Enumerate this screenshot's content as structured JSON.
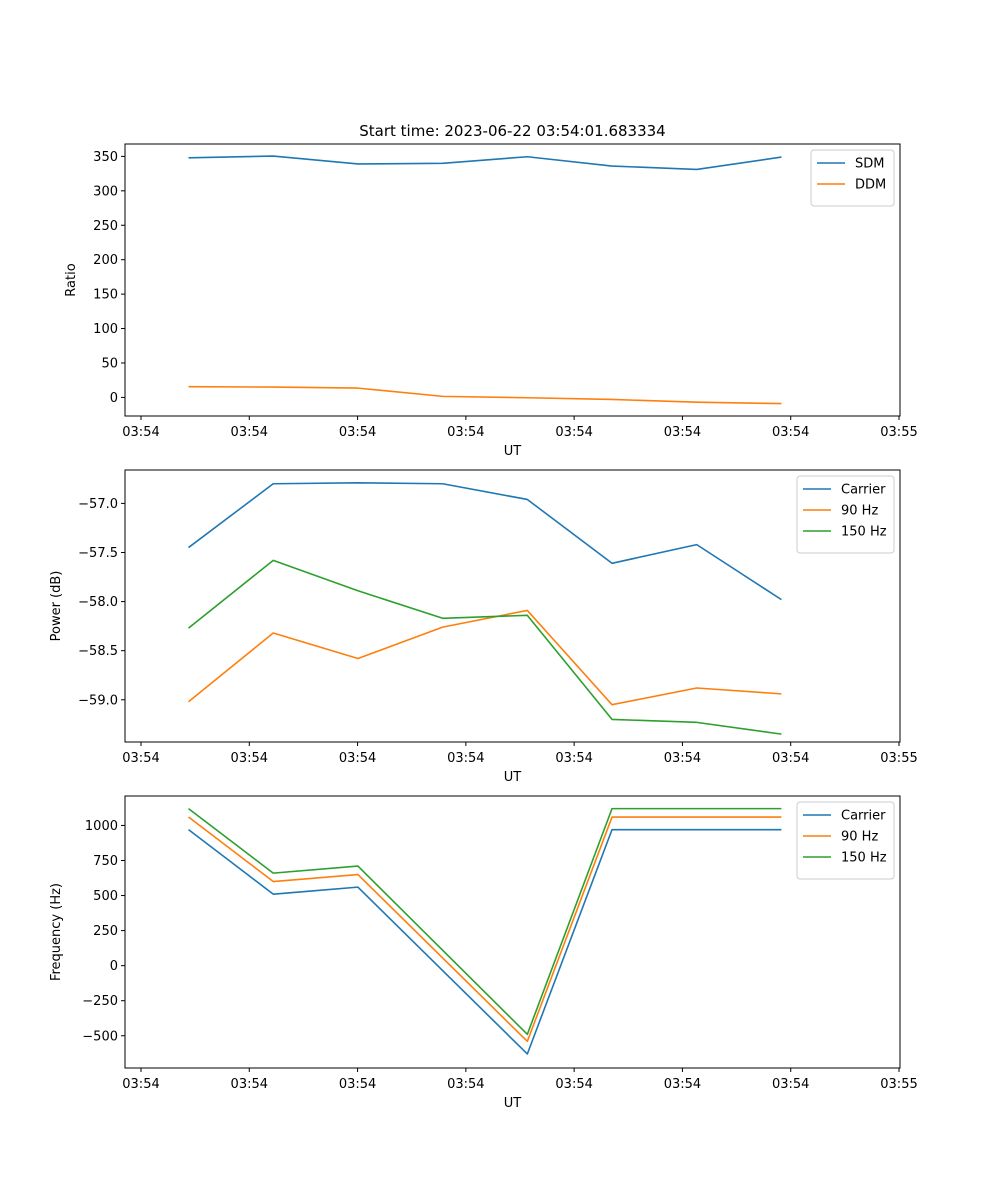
{
  "figure": {
    "title": "Start time: 2023-06-22 03:54:01.683334"
  },
  "chart_data": [
    {
      "type": "line",
      "title": "Start time: 2023-06-22 03:54:01.683334",
      "xlabel": "UT",
      "ylabel": "Ratio",
      "x_tick_labels": [
        "03:54",
        "03:54",
        "03:54",
        "03:54",
        "03:54",
        "03:54",
        "03:54",
        "03:55"
      ],
      "y_ticks": [
        0,
        50,
        100,
        150,
        200,
        250,
        300,
        350
      ],
      "y_tick_labels": [
        "0",
        "50",
        "100",
        "150",
        "200",
        "250",
        "300",
        "350"
      ],
      "xlim": [
        -0.75,
        8.4
      ],
      "ylim": [
        -27,
        368
      ],
      "x": [
        0,
        1,
        2,
        3,
        4,
        5,
        6,
        7
      ],
      "series": [
        {
          "name": "SDM",
          "color": "#1f77b4",
          "values": [
            348,
            350.5,
            339,
            340,
            349.5,
            336,
            331,
            349
          ]
        },
        {
          "name": "DDM",
          "color": "#ff7f0e",
          "values": [
            15.5,
            15,
            13.5,
            1.5,
            -0.5,
            -3,
            -7,
            -9
          ]
        }
      ],
      "legend": "top-right",
      "grid": false
    },
    {
      "type": "line",
      "xlabel": "UT",
      "ylabel": "Power (dB)",
      "x_tick_labels": [
        "03:54",
        "03:54",
        "03:54",
        "03:54",
        "03:54",
        "03:54",
        "03:54",
        "03:55"
      ],
      "y_ticks": [
        -59.0,
        -58.5,
        -58.0,
        -57.5,
        -57.0
      ],
      "y_tick_labels": [
        "−59.0",
        "−58.5",
        "−58.0",
        "−57.5",
        "−57.0"
      ],
      "xlim": [
        -0.75,
        8.4
      ],
      "ylim": [
        -59.43,
        -56.66
      ],
      "x": [
        0,
        1,
        2,
        3,
        4,
        5,
        6,
        7
      ],
      "series": [
        {
          "name": "Carrier",
          "color": "#1f77b4",
          "values": [
            -57.45,
            -56.8,
            -56.79,
            -56.8,
            -56.96,
            -57.61,
            -57.42,
            -57.98
          ]
        },
        {
          "name": "90 Hz",
          "color": "#ff7f0e",
          "values": [
            -59.02,
            -58.32,
            -58.58,
            -58.26,
            -58.09,
            -59.05,
            -58.88,
            -58.94
          ]
        },
        {
          "name": "150 Hz",
          "color": "#2ca02c",
          "values": [
            -58.27,
            -57.58,
            -57.89,
            -58.17,
            -58.14,
            -59.2,
            -59.23,
            -59.35
          ]
        }
      ],
      "legend": "top-right",
      "grid": false
    },
    {
      "type": "line",
      "xlabel": "UT",
      "ylabel": "Frequency (Hz)",
      "x_tick_labels": [
        "03:54",
        "03:54",
        "03:54",
        "03:54",
        "03:54",
        "03:54",
        "03:54",
        "03:55"
      ],
      "y_ticks": [
        -500,
        -250,
        0,
        250,
        500,
        750,
        1000
      ],
      "y_tick_labels": [
        "−500",
        "−250",
        "0",
        "250",
        "500",
        "750",
        "1000"
      ],
      "xlim": [
        -0.75,
        8.4
      ],
      "ylim": [
        -730,
        1210
      ],
      "x": [
        0,
        1,
        2,
        3,
        4,
        5,
        6
      ],
      "series": [
        {
          "name": "Carrier",
          "color": "#1f77b4",
          "values": [
            970,
            510,
            560,
            -630,
            970,
            970,
            970
          ]
        },
        {
          "name": "90 Hz",
          "color": "#ff7f0e",
          "values": [
            1060,
            600,
            650,
            -540,
            1060,
            1060,
            1060
          ]
        },
        {
          "name": "150 Hz",
          "color": "#2ca02c",
          "values": [
            1120,
            660,
            710,
            -490,
            1120,
            1120,
            1120
          ]
        }
      ],
      "x_positions": [
        0,
        1,
        2,
        4,
        5,
        6,
        7
      ],
      "legend": "top-right",
      "grid": false
    }
  ]
}
